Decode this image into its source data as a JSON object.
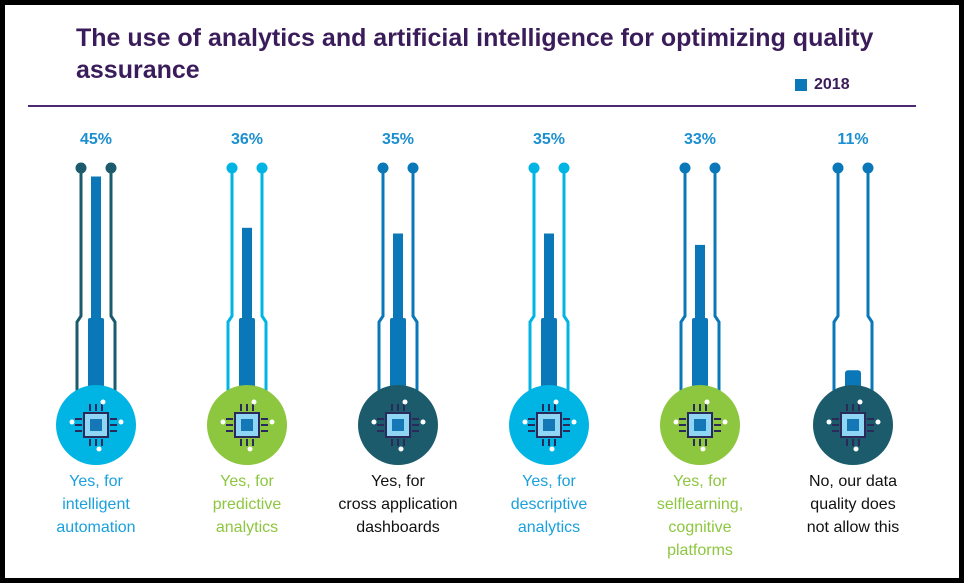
{
  "chart_data": {
    "type": "bar",
    "title": "The use of analytics and artificial intelligence for optimizing quality assurance",
    "legend": {
      "position": "top-right",
      "entries": [
        "2018"
      ]
    },
    "ylim": [
      0,
      100
    ],
    "grid": false,
    "categories": [
      "Yes, for intelligent automation",
      "Yes, for predictive analytics",
      "Yes, for cross application dashboards",
      "Yes, for descriptive analytics",
      "Yes, for selflearning, cognitive platforms",
      "No, our data quality does not allow this"
    ],
    "label_lines": [
      [
        "Yes, for",
        "intelligent",
        "automation"
      ],
      [
        "Yes, for",
        "predictive",
        "analytics"
      ],
      [
        "Yes, for",
        "cross application",
        "dashboards"
      ],
      [
        "Yes, for",
        "descriptive",
        "analytics"
      ],
      [
        "Yes, for",
        "selflearning,",
        "cognitive",
        "platforms"
      ],
      [
        "No, our data",
        "quality does",
        "not allow this"
      ]
    ],
    "series": [
      {
        "name": "2018",
        "values": [
          45,
          36,
          35,
          35,
          33,
          11
        ]
      }
    ],
    "data_labels": [
      "45%",
      "36%",
      "35%",
      "35%",
      "33%",
      "11%"
    ]
  },
  "colors": {
    "bar": "#0a78b8",
    "title": "#3b1c5a",
    "circles": [
      "#00b4e4",
      "#8dc63f",
      "#1b5b6b",
      "#00b4e4",
      "#8dc63f",
      "#1b5b6b"
    ],
    "tubes": [
      "#1b5b6b",
      "#00b4e4",
      "#0a78b8",
      "#00b4e4",
      "#0a78b8",
      "#0a78b8"
    ],
    "label_colors": [
      "#1aa0dc",
      "#8dc63f",
      "#111111",
      "#1aa0dc",
      "#8dc63f",
      "#111111"
    ]
  }
}
